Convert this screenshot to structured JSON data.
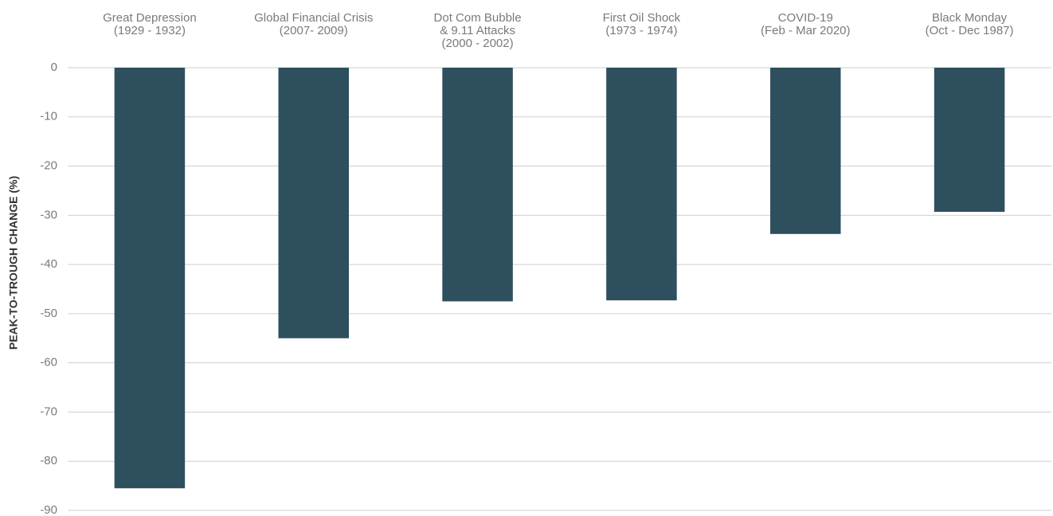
{
  "chart_data": {
    "type": "bar",
    "ylabel": "PEAK-TO-TROUGH CHANGE (%)",
    "categories": [
      [
        "Great Depression",
        "(1929 - 1932)"
      ],
      [
        "Global Financial Crisis",
        "(2007- 2009)"
      ],
      [
        "Dot Com Bubble",
        "& 9.11 Attacks",
        "(2000 - 2002)"
      ],
      [
        "First Oil Shock",
        "(1973 - 1974)"
      ],
      [
        "COVID-19",
        "(Feb - Mar 2020)"
      ],
      [
        "Black Monday",
        "(Oct - Dec 1987)"
      ]
    ],
    "values": [
      -85.5,
      -55,
      -47.5,
      -47.3,
      -33.8,
      -29.3
    ],
    "color": "#2e4f5e",
    "ylim": [
      -90,
      0
    ],
    "yticks": [
      0,
      -10,
      -20,
      -30,
      -40,
      -50,
      -60,
      -70,
      -80,
      -90
    ],
    "grid": true
  }
}
